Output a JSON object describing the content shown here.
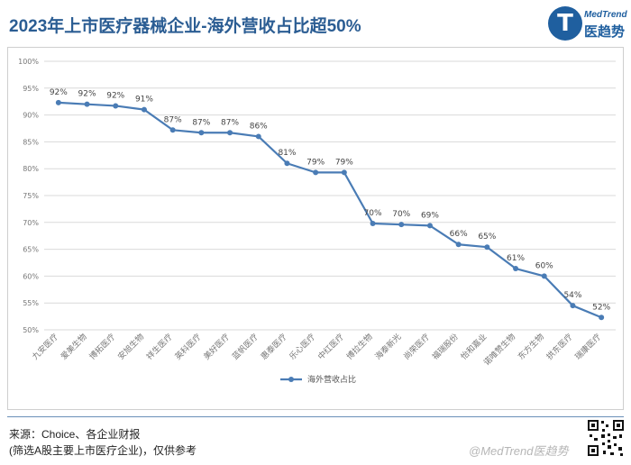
{
  "header": {
    "title": "2023年上市医疗器械企业-海外营收占比超50%",
    "logo_en": "MedTrend",
    "logo_cn": "医趋势",
    "logo_letter": "T"
  },
  "footer": {
    "source_line1": "来源：Choice、各企业财报",
    "source_line2": "(筛选A股主要上市医疗企业)，仅供参考",
    "watermark": "@MedTrend医趋势"
  },
  "colors": {
    "series": "#4a7cb5",
    "title": "#2b5d93",
    "grid": "#d9d9d9"
  },
  "chart_data": {
    "type": "line",
    "title": "",
    "xlabel": "",
    "ylabel": "",
    "ylim": [
      0.5,
      1.0
    ],
    "yticks": [
      "50%",
      "55%",
      "60%",
      "65%",
      "70%",
      "75%",
      "80%",
      "85%",
      "90%",
      "95%",
      "100%"
    ],
    "grid": "horizontal",
    "legend_position": "bottom-center",
    "categories": [
      "九安医疗",
      "爱美生物",
      "博拓医疗",
      "安旭生物",
      "祥生医疗",
      "英科医疗",
      "美好医疗",
      "蓝帆医疗",
      "惠泰医疗",
      "乐心医疗",
      "中红医疗",
      "博拉生物",
      "海泰新光",
      "尚荣医疗",
      "福瑞股份",
      "怡和嘉业",
      "诺唯赞生物",
      "东方生物",
      "拱东医疗",
      "瑞康医疗"
    ],
    "series": [
      {
        "name": "海外营收占比",
        "values": [
          0.923,
          0.92,
          0.917,
          0.91,
          0.872,
          0.867,
          0.867,
          0.86,
          0.81,
          0.793,
          0.793,
          0.698,
          0.696,
          0.694,
          0.659,
          0.654,
          0.614,
          0.6,
          0.545,
          0.523
        ],
        "labels": [
          "92%",
          "92%",
          "92%",
          "91%",
          "87%",
          "87%",
          "87%",
          "86%",
          "81%",
          "79%",
          "79%",
          "70%",
          "70%",
          "69%",
          "66%",
          "65%",
          "61%",
          "60%",
          "54%",
          "52%"
        ]
      }
    ]
  }
}
